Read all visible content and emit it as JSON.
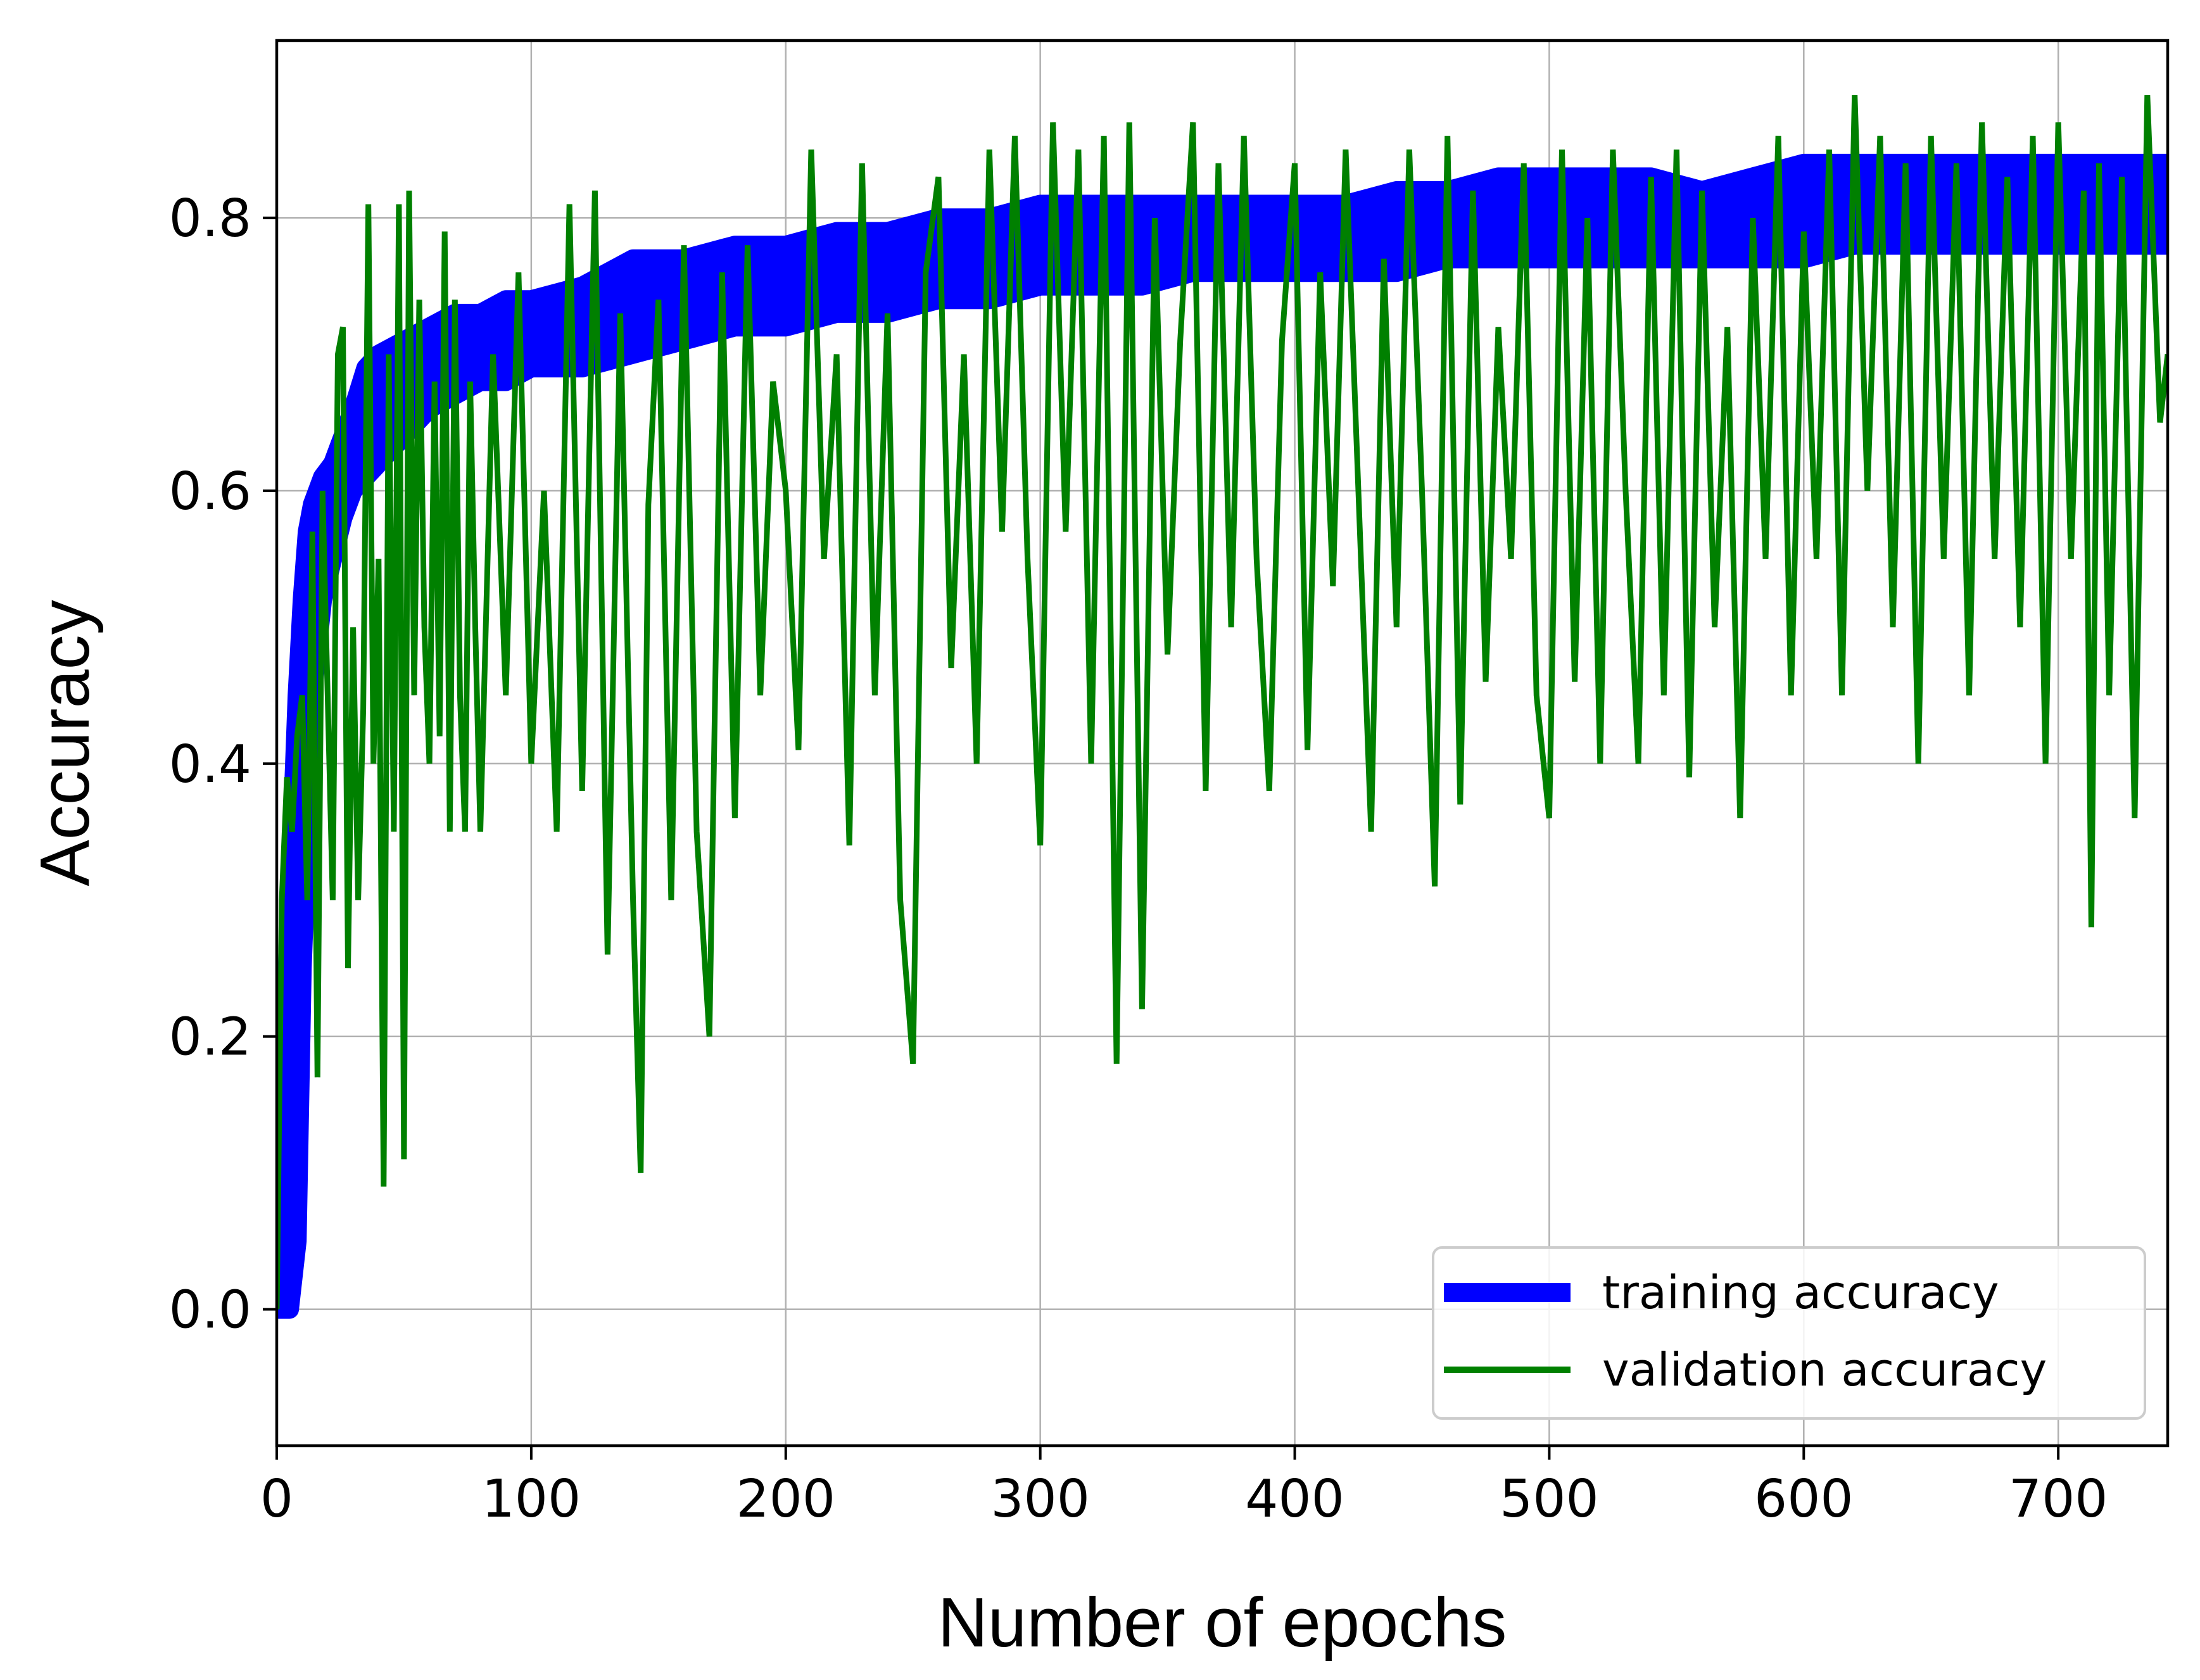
{
  "chart_data": {
    "type": "line",
    "title": "",
    "xlabel": "Number of epochs",
    "ylabel": "Accuracy",
    "xlim": [
      0,
      743
    ],
    "ylim": [
      -0.1,
      0.93
    ],
    "x_ticks": [
      "0",
      "100",
      "200",
      "300",
      "400",
      "500",
      "600",
      "700"
    ],
    "x_tick_values": [
      0,
      100,
      200,
      300,
      400,
      500,
      600,
      700
    ],
    "y_ticks": [
      "0.0",
      "0.2",
      "0.4",
      "0.6",
      "0.8"
    ],
    "y_tick_values": [
      0.0,
      0.2,
      0.4,
      0.6,
      0.8
    ],
    "grid": true,
    "legend_position": "lower-right",
    "series": [
      {
        "name": "training accuracy",
        "color": "#0000ff",
        "envelope": {
          "x": [
            0,
            5,
            8,
            10,
            12,
            14,
            18,
            22,
            26,
            30,
            35,
            40,
            50,
            60,
            70,
            80,
            90,
            100,
            120,
            140,
            160,
            180,
            200,
            220,
            240,
            260,
            280,
            300,
            320,
            340,
            360,
            380,
            400,
            420,
            440,
            460,
            480,
            500,
            520,
            540,
            560,
            580,
            600,
            620,
            640,
            660,
            680,
            700,
            720,
            743
          ],
          "low": [
            0.0,
            0.0,
            0.05,
            0.25,
            0.35,
            0.45,
            0.52,
            0.55,
            0.58,
            0.6,
            0.61,
            0.62,
            0.64,
            0.66,
            0.67,
            0.68,
            0.68,
            0.69,
            0.69,
            0.7,
            0.71,
            0.72,
            0.72,
            0.73,
            0.73,
            0.74,
            0.74,
            0.75,
            0.75,
            0.75,
            0.76,
            0.76,
            0.76,
            0.76,
            0.76,
            0.77,
            0.77,
            0.77,
            0.77,
            0.77,
            0.77,
            0.77,
            0.77,
            0.78,
            0.78,
            0.78,
            0.78,
            0.78,
            0.78,
            0.78
          ],
          "high": [
            0.0,
            0.3,
            0.45,
            0.52,
            0.57,
            0.59,
            0.61,
            0.62,
            0.64,
            0.66,
            0.69,
            0.7,
            0.71,
            0.72,
            0.73,
            0.73,
            0.74,
            0.74,
            0.75,
            0.77,
            0.77,
            0.78,
            0.78,
            0.79,
            0.79,
            0.8,
            0.8,
            0.81,
            0.81,
            0.81,
            0.81,
            0.81,
            0.81,
            0.81,
            0.82,
            0.82,
            0.83,
            0.83,
            0.83,
            0.83,
            0.82,
            0.83,
            0.84,
            0.84,
            0.84,
            0.84,
            0.84,
            0.84,
            0.84,
            0.84
          ]
        }
      },
      {
        "name": "validation accuracy",
        "color": "#008000",
        "x": [
          0,
          2,
          4,
          6,
          8,
          10,
          12,
          14,
          16,
          18,
          20,
          22,
          24,
          26,
          28,
          30,
          32,
          34,
          36,
          38,
          40,
          42,
          44,
          46,
          48,
          50,
          52,
          54,
          56,
          58,
          60,
          62,
          64,
          66,
          68,
          70,
          72,
          74,
          76,
          78,
          80,
          85,
          90,
          95,
          100,
          105,
          110,
          115,
          120,
          125,
          130,
          135,
          140,
          143,
          146,
          150,
          155,
          160,
          165,
          170,
          175,
          180,
          185,
          190,
          195,
          200,
          205,
          210,
          215,
          220,
          225,
          230,
          235,
          240,
          245,
          250,
          255,
          260,
          265,
          270,
          275,
          280,
          285,
          290,
          295,
          300,
          305,
          310,
          315,
          320,
          325,
          330,
          335,
          340,
          345,
          350,
          355,
          360,
          365,
          370,
          375,
          380,
          385,
          390,
          395,
          400,
          405,
          410,
          415,
          420,
          425,
          430,
          435,
          440,
          445,
          450,
          455,
          460,
          465,
          470,
          475,
          480,
          485,
          490,
          495,
          500,
          505,
          510,
          515,
          520,
          525,
          530,
          535,
          540,
          545,
          550,
          555,
          560,
          565,
          570,
          575,
          580,
          585,
          590,
          595,
          600,
          605,
          610,
          615,
          620,
          625,
          630,
          635,
          640,
          645,
          650,
          655,
          660,
          665,
          670,
          675,
          680,
          685,
          690,
          695,
          700,
          705,
          710,
          713,
          716,
          720,
          725,
          730,
          735,
          740,
          743
        ],
        "values": [
          0.0,
          0.3,
          0.39,
          0.35,
          0.42,
          0.45,
          0.3,
          0.57,
          0.17,
          0.6,
          0.45,
          0.3,
          0.7,
          0.72,
          0.25,
          0.5,
          0.3,
          0.44,
          0.81,
          0.4,
          0.55,
          0.09,
          0.7,
          0.35,
          0.81,
          0.11,
          0.82,
          0.45,
          0.74,
          0.5,
          0.4,
          0.68,
          0.42,
          0.79,
          0.35,
          0.74,
          0.45,
          0.35,
          0.68,
          0.5,
          0.35,
          0.7,
          0.45,
          0.76,
          0.4,
          0.6,
          0.35,
          0.81,
          0.38,
          0.82,
          0.26,
          0.73,
          0.3,
          0.1,
          0.59,
          0.74,
          0.3,
          0.78,
          0.35,
          0.2,
          0.76,
          0.36,
          0.78,
          0.45,
          0.68,
          0.6,
          0.41,
          0.85,
          0.55,
          0.7,
          0.34,
          0.84,
          0.45,
          0.73,
          0.3,
          0.18,
          0.76,
          0.83,
          0.47,
          0.7,
          0.4,
          0.85,
          0.57,
          0.86,
          0.55,
          0.34,
          0.87,
          0.57,
          0.85,
          0.4,
          0.86,
          0.18,
          0.87,
          0.22,
          0.8,
          0.48,
          0.71,
          0.87,
          0.38,
          0.84,
          0.5,
          0.86,
          0.55,
          0.38,
          0.71,
          0.84,
          0.41,
          0.76,
          0.53,
          0.85,
          0.6,
          0.35,
          0.77,
          0.5,
          0.85,
          0.6,
          0.31,
          0.86,
          0.37,
          0.82,
          0.46,
          0.72,
          0.55,
          0.84,
          0.45,
          0.36,
          0.85,
          0.46,
          0.8,
          0.4,
          0.85,
          0.6,
          0.4,
          0.83,
          0.45,
          0.85,
          0.39,
          0.82,
          0.5,
          0.72,
          0.36,
          0.8,
          0.55,
          0.86,
          0.45,
          0.79,
          0.55,
          0.85,
          0.45,
          0.89,
          0.6,
          0.86,
          0.5,
          0.84,
          0.4,
          0.86,
          0.55,
          0.84,
          0.45,
          0.87,
          0.55,
          0.83,
          0.5,
          0.86,
          0.4,
          0.87,
          0.55,
          0.82,
          0.28,
          0.84,
          0.45,
          0.83,
          0.36,
          0.89,
          0.65,
          0.7
        ]
      }
    ]
  }
}
